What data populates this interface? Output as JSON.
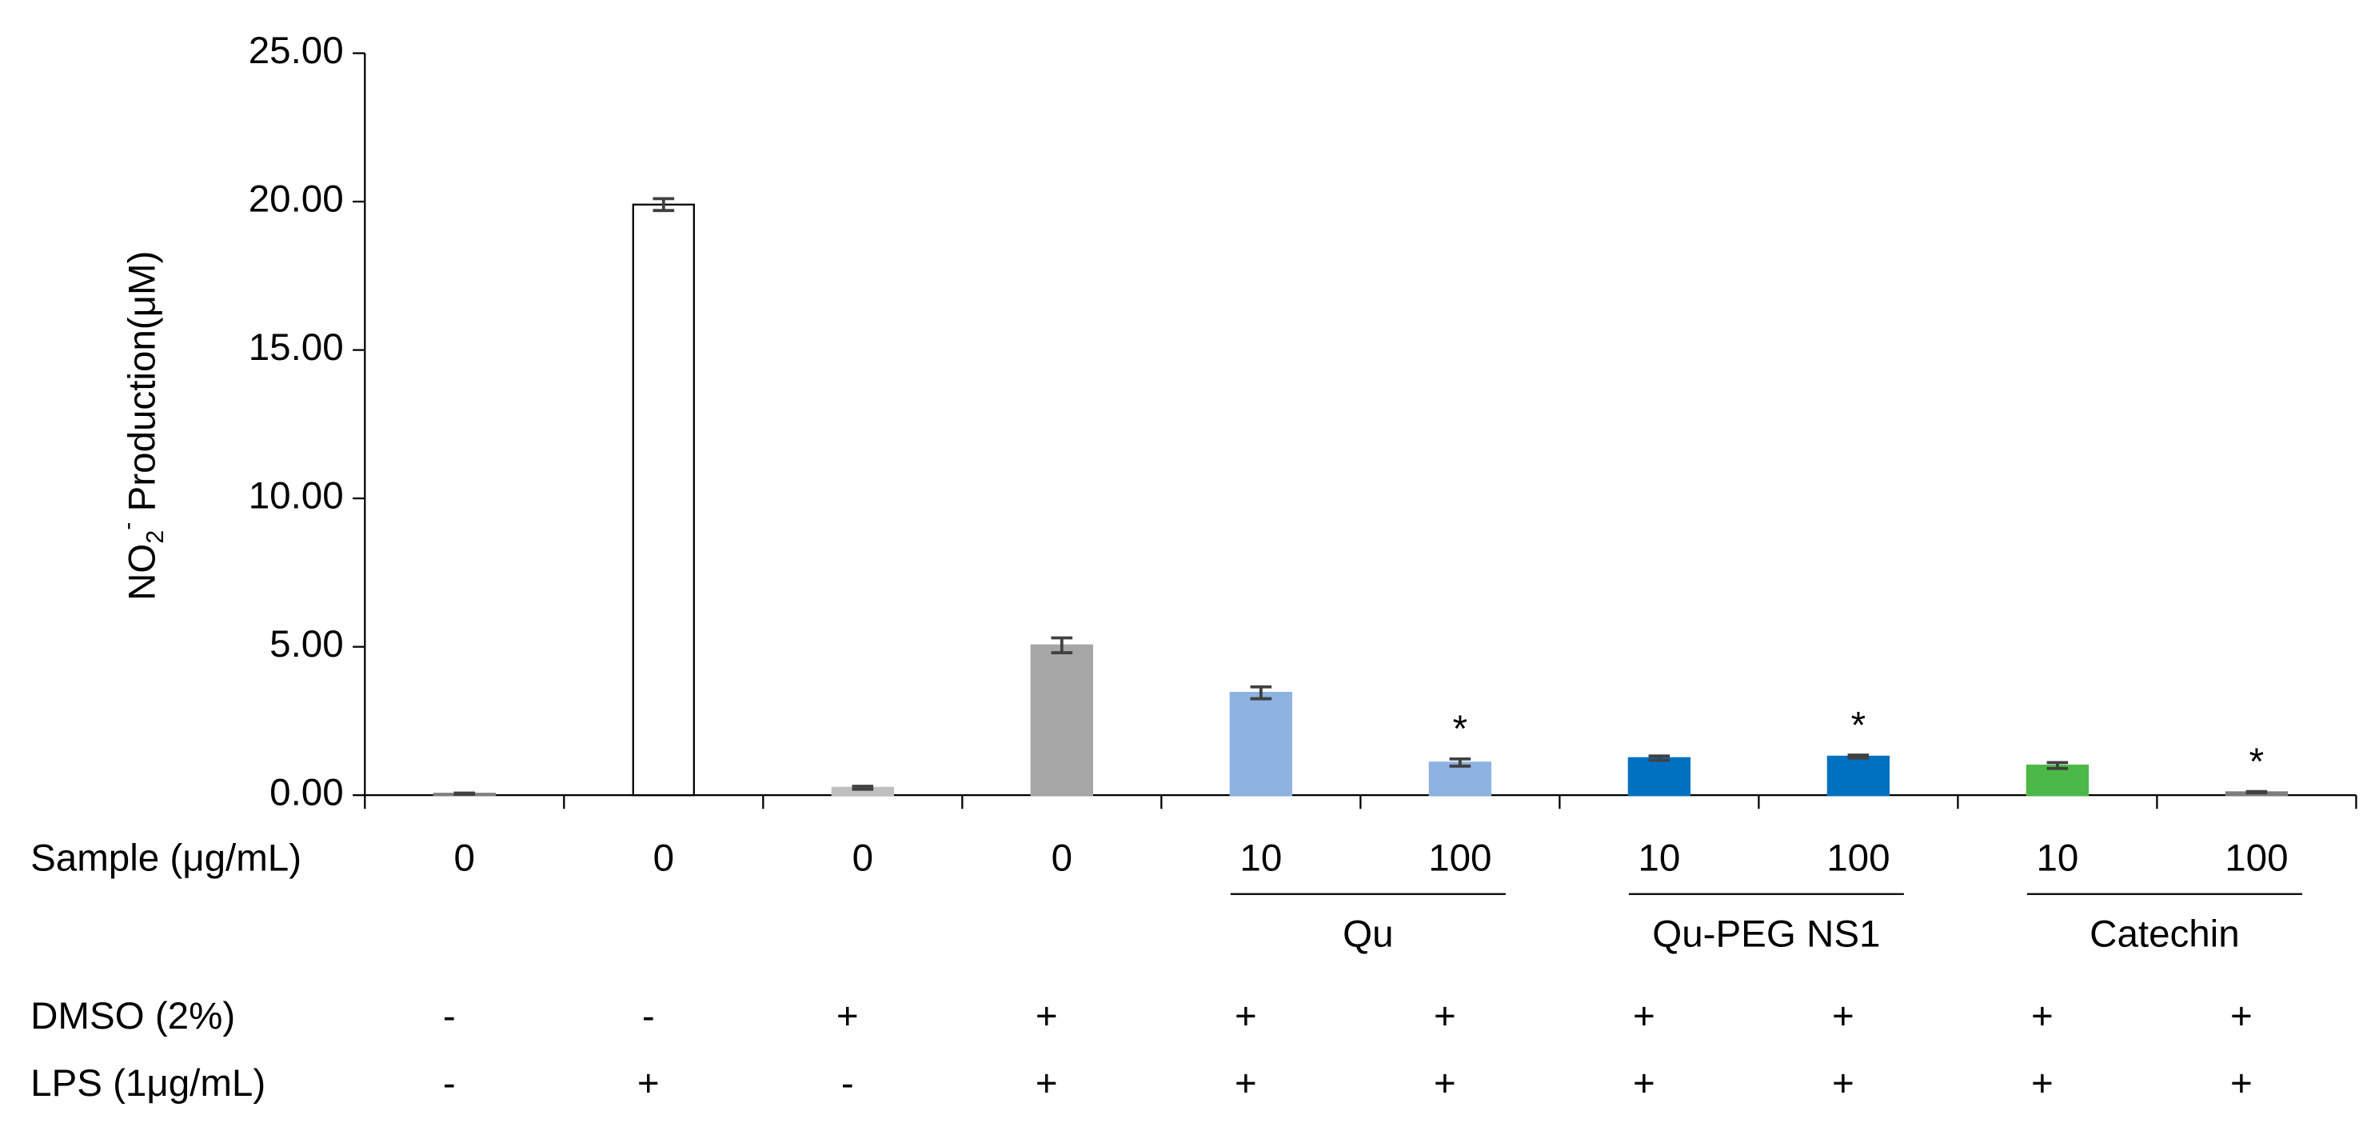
{
  "chart_data": {
    "type": "bar",
    "y_label": {
      "main": "NO",
      "sub": "2",
      "sup": "-",
      "rest": " Production(μM)"
    },
    "categories": [
      "0",
      "0",
      "0",
      "0",
      "10",
      "100",
      "10",
      "100",
      "10",
      "100"
    ],
    "category_axis_label": "Sample (μg/mL)",
    "values": [
      0.05,
      19.9,
      0.25,
      5.05,
      3.45,
      1.1,
      1.25,
      1.3,
      1.0,
      0.1
    ],
    "errors": [
      0.02,
      0.2,
      0.05,
      0.25,
      0.2,
      0.12,
      0.07,
      0.05,
      0.1,
      0.02
    ],
    "colors": [
      "#7f7f7f",
      "#ffffff",
      "#bfbfbf",
      "#a6a6a6",
      "#8db3e2",
      "#8db3e2",
      "#0070c0",
      "#0070c0",
      "#4cb848",
      "#7f7f7f"
    ],
    "significance": [
      null,
      null,
      null,
      null,
      null,
      "*",
      null,
      "*",
      null,
      "*"
    ],
    "groups": [
      {
        "label": "Qu",
        "members": [
          4,
          5
        ]
      },
      {
        "label": "Qu-PEG NS1",
        "members": [
          6,
          7
        ]
      },
      {
        "label": "Catechin",
        "members": [
          8,
          9
        ]
      }
    ],
    "conditions": [
      {
        "label": "DMSO (2%)",
        "values": [
          "-",
          "-",
          "+",
          "+",
          "+",
          "+",
          "+",
          "+",
          "+",
          "+"
        ]
      },
      {
        "label": "LPS (1μg/mL)",
        "values": [
          "-",
          "+",
          "-",
          "+",
          "+",
          "+",
          "+",
          "+",
          "+",
          "+"
        ]
      }
    ],
    "ylim": [
      0,
      25
    ],
    "yticks": [
      {
        "value": 0,
        "label": "0.00"
      },
      {
        "value": 5,
        "label": "5.00"
      },
      {
        "value": 10,
        "label": "10.00"
      },
      {
        "value": 15,
        "label": "15.00"
      },
      {
        "value": 20,
        "label": "20.00"
      },
      {
        "value": 25,
        "label": "25.00"
      }
    ]
  }
}
